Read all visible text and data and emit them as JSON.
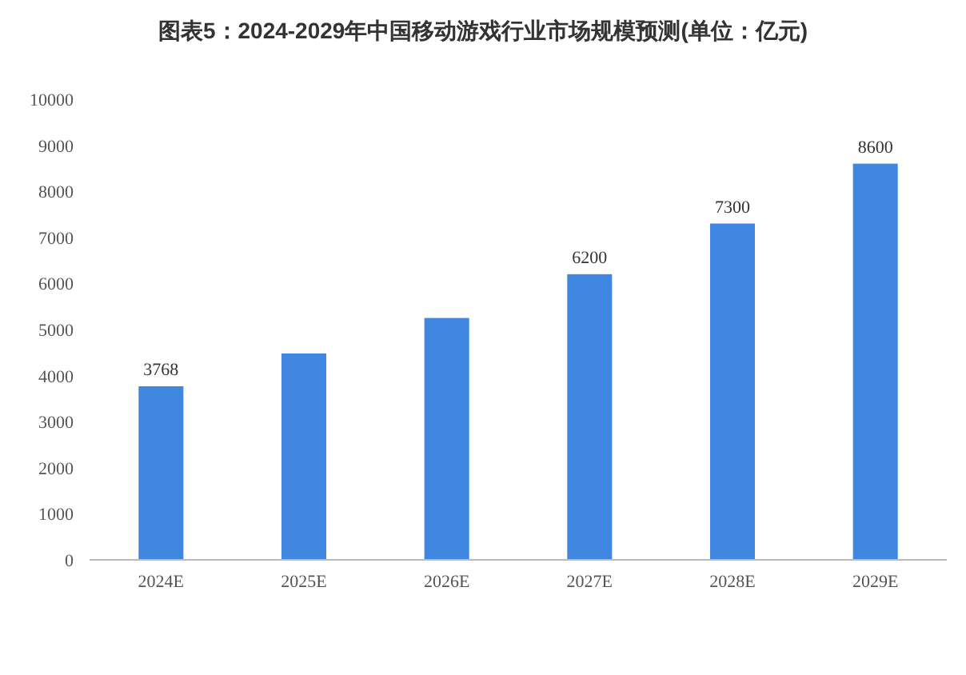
{
  "chart_data": {
    "type": "bar",
    "title": "图表5：2024-2029年中国移动游戏行业市场规模预测(单位：亿元)",
    "categories": [
      "2024E",
      "2025E",
      "2026E",
      "2027E",
      "2028E",
      "2029E"
    ],
    "values": [
      3768,
      4480,
      5250,
      6200,
      7300,
      8600
    ],
    "value_labels": [
      "3768",
      null,
      null,
      "6200",
      "7300",
      "8600"
    ],
    "color": "#3f87e0",
    "ylim": [
      0,
      10000
    ],
    "yticks": [
      0,
      1000,
      2000,
      3000,
      4000,
      5000,
      6000,
      7000,
      8000,
      9000,
      10000
    ],
    "grid": false
  }
}
